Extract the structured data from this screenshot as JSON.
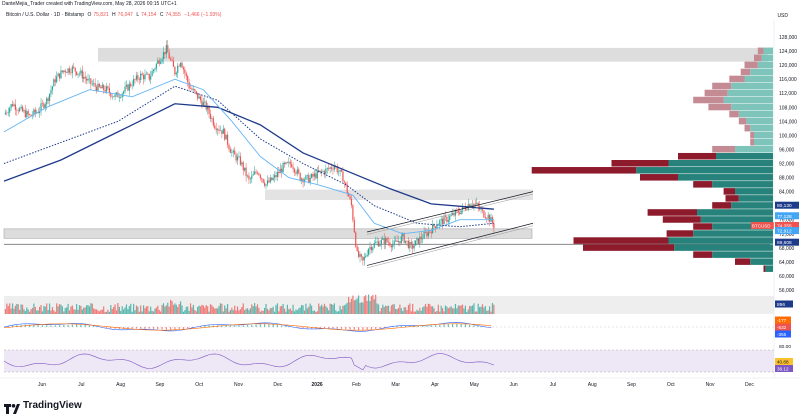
{
  "header": {
    "credit": "DanteMejia_Trader created with TradingView.com, May 28, 2026 00:15 UTC+1",
    "symbol": "Bitcoin / U.S. Dollar · 1D · Bitstamp",
    "o_label": "O",
    "o_value": "75,821",
    "h_label": "H",
    "h_value": "76,047",
    "l_label": "L",
    "l_value": "74,154",
    "c_label": "C",
    "c_value": "74,355",
    "change": "−1,466 (−1.93%)",
    "currency": "USD"
  },
  "brand": {
    "name": "TradingView"
  },
  "colors": {
    "up": "#26a69a",
    "down": "#ef5350",
    "ma_dark": "#1e3a8a",
    "ma_light": "#64b5f6",
    "profile_up": "#26827a",
    "profile_down": "#8e1b2c",
    "profile_light_up": "#7fc4bb",
    "profile_light_down": "#c48b95",
    "zone": "#d7d7d7",
    "rsi_band": "#ede7f6",
    "rsi_line": "#7e57c2"
  },
  "price_labels": {
    "btc": "BTCUSD",
    "close": "74,355",
    "upper": "80,130",
    "mid": "77,128",
    "lower": "72,912",
    "low": "69,608"
  },
  "indicator_labels": {
    "volume": "896",
    "macd_a": "-177",
    "macd_b": "-532",
    "macd_c": "-355",
    "rsi_a": "80.00",
    "rsi_b": "40.88",
    "rsi_c": "38.12"
  },
  "chart_data": {
    "type": "candlestick",
    "ylabel": "USD",
    "ylim": [
      56000,
      130000
    ],
    "y_ticks": [
      "128,000",
      "124,000",
      "120,000",
      "116,000",
      "112,000",
      "108,000",
      "104,000",
      "100,000",
      "96,000",
      "92,000",
      "88,000",
      "84,000",
      "80,000",
      "76,000",
      "72,000",
      "68,000",
      "64,000",
      "60,000",
      "56,000"
    ],
    "y_tick_values": [
      128000,
      124000,
      120000,
      116000,
      112000,
      108000,
      104000,
      100000,
      96000,
      92000,
      88000,
      84000,
      80000,
      76000,
      72000,
      68000,
      64000,
      60000,
      56000
    ],
    "x_labels": [
      "Jun",
      "Jul",
      "Aug",
      "Sep",
      "Oct",
      "Nov",
      "Dec",
      "2026",
      "Feb",
      "Mar",
      "Apr",
      "May",
      "Jun",
      "Jul",
      "Aug",
      "Sep",
      "Oct",
      "Nov",
      "Dec"
    ],
    "price_path": [
      [
        0,
        106000
      ],
      [
        6,
        109000
      ],
      [
        12,
        107000
      ],
      [
        18,
        105500
      ],
      [
        24,
        107000
      ],
      [
        30,
        110000
      ],
      [
        36,
        116000
      ],
      [
        42,
        118500
      ],
      [
        48,
        119000
      ],
      [
        54,
        117500
      ],
      [
        60,
        115000
      ],
      [
        66,
        113500
      ],
      [
        72,
        113000
      ],
      [
        78,
        111000
      ],
      [
        84,
        112500
      ],
      [
        90,
        115000
      ],
      [
        96,
        117000
      ],
      [
        102,
        116500
      ],
      [
        108,
        121000
      ],
      [
        114,
        124500
      ],
      [
        120,
        118000
      ],
      [
        124,
        121500
      ],
      [
        130,
        114000
      ],
      [
        136,
        111000
      ],
      [
        142,
        108000
      ],
      [
        148,
        103000
      ],
      [
        154,
        101000
      ],
      [
        160,
        95000
      ],
      [
        166,
        92500
      ],
      [
        172,
        87000
      ],
      [
        178,
        90000
      ],
      [
        184,
        86000
      ],
      [
        190,
        88000
      ],
      [
        196,
        91000
      ],
      [
        202,
        92000
      ],
      [
        208,
        88000
      ],
      [
        214,
        87500
      ],
      [
        220,
        89000
      ],
      [
        226,
        90000
      ],
      [
        232,
        91500
      ],
      [
        238,
        88000
      ],
      [
        244,
        80000
      ],
      [
        248,
        66000
      ],
      [
        252,
        64000
      ],
      [
        256,
        68000
      ],
      [
        262,
        69500
      ],
      [
        268,
        70000
      ],
      [
        274,
        69000
      ],
      [
        280,
        71000
      ],
      [
        286,
        68000
      ],
      [
        292,
        70500
      ],
      [
        298,
        72500
      ],
      [
        304,
        75000
      ],
      [
        310,
        76000
      ],
      [
        316,
        77500
      ],
      [
        322,
        79000
      ],
      [
        328,
        81000
      ],
      [
        332,
        80000
      ],
      [
        336,
        78000
      ],
      [
        340,
        77000
      ],
      [
        344,
        74355
      ]
    ],
    "series": [
      {
        "name": "",
        "path": [
          [
            0,
            87000
          ],
          [
            40,
            93000
          ],
          [
            80,
            101000
          ],
          [
            120,
            109000
          ],
          [
            150,
            108000
          ],
          [
            180,
            103000
          ],
          [
            210,
            95000
          ],
          [
            240,
            90000
          ],
          [
            270,
            85000
          ],
          [
            300,
            80500
          ],
          [
            330,
            79500
          ],
          [
            344,
            79000
          ]
        ]
      },
      {
        "name": "",
        "path": [
          [
            0,
            101000
          ],
          [
            30,
            108000
          ],
          [
            60,
            113000
          ],
          [
            90,
            111000
          ],
          [
            120,
            116000
          ],
          [
            140,
            113000
          ],
          [
            160,
            104000
          ],
          [
            180,
            94000
          ],
          [
            200,
            88000
          ],
          [
            220,
            86000
          ],
          [
            245,
            83000
          ],
          [
            260,
            75000
          ],
          [
            280,
            72000
          ],
          [
            300,
            73000
          ],
          [
            320,
            76000
          ],
          [
            344,
            76000
          ]
        ]
      }
    ],
    "volume_profile": [
      {
        "price": 124000,
        "up": 0.05,
        "down": 0.03
      },
      {
        "price": 122000,
        "up": 0.06,
        "down": 0.04
      },
      {
        "price": 120000,
        "up": 0.08,
        "down": 0.07
      },
      {
        "price": 118000,
        "up": 0.12,
        "down": 0.05
      },
      {
        "price": 116000,
        "up": 0.15,
        "down": 0.08
      },
      {
        "price": 114000,
        "up": 0.22,
        "down": 0.1
      },
      {
        "price": 112000,
        "up": 0.24,
        "down": 0.12
      },
      {
        "price": 110000,
        "up": 0.26,
        "down": 0.16
      },
      {
        "price": 108000,
        "up": 0.22,
        "down": 0.12
      },
      {
        "price": 106000,
        "up": 0.18,
        "down": 0.05
      },
      {
        "price": 104000,
        "up": 0.14,
        "down": 0.04
      },
      {
        "price": 102000,
        "up": 0.12,
        "down": 0.03
      },
      {
        "price": 100000,
        "up": 0.1,
        "down": 0.02
      },
      {
        "price": 98000,
        "up": 0.1,
        "down": 0.02
      },
      {
        "price": 96000,
        "up": 0.2,
        "down": 0.12
      },
      {
        "price": 94000,
        "up": 0.3,
        "down": 0.2
      },
      {
        "price": 92000,
        "up": 0.55,
        "down": 0.3
      },
      {
        "price": 90000,
        "up": 0.72,
        "down": 0.55
      },
      {
        "price": 88000,
        "up": 0.5,
        "down": 0.2
      },
      {
        "price": 86000,
        "up": 0.32,
        "down": 0.1
      },
      {
        "price": 84000,
        "up": 0.2,
        "down": 0.06
      },
      {
        "price": 82000,
        "up": 0.18,
        "down": 0.07
      },
      {
        "price": 80000,
        "up": 0.22,
        "down": 0.1
      },
      {
        "price": 78000,
        "up": 0.4,
        "down": 0.26
      },
      {
        "price": 76000,
        "up": 0.38,
        "down": 0.2
      },
      {
        "price": 74000,
        "up": 0.32,
        "down": 0.1
      },
      {
        "price": 72000,
        "up": 0.42,
        "down": 0.14
      },
      {
        "price": 70000,
        "up": 0.55,
        "down": 0.5
      },
      {
        "price": 68000,
        "up": 0.52,
        "down": 0.48
      },
      {
        "price": 66000,
        "up": 0.32,
        "down": 0.1
      },
      {
        "price": 64000,
        "up": 0.12,
        "down": 0.08
      },
      {
        "price": 62000,
        "up": 0.04,
        "down": 0.01
      }
    ]
  }
}
